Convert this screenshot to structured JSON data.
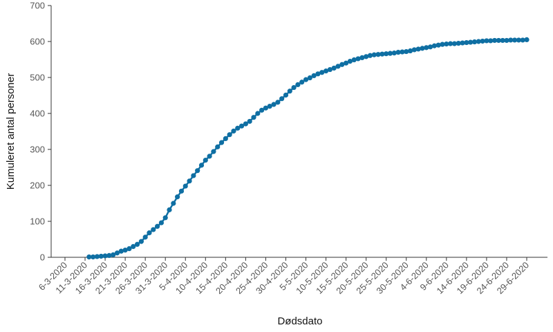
{
  "chart_data": {
    "type": "line",
    "xlabel": "Dødsdato",
    "ylabel": "Kumuleret antal personer",
    "ylim": [
      0,
      700
    ],
    "xlim": [
      "2020-03-06",
      "2020-06-29"
    ],
    "grid": false,
    "y_ticks": [
      0,
      100,
      200,
      300,
      400,
      500,
      600,
      700
    ],
    "x_ticks": [
      {
        "date": "2020-03-06",
        "label": "6-3-2020"
      },
      {
        "date": "2020-03-11",
        "label": "11-3-2020"
      },
      {
        "date": "2020-03-16",
        "label": "16-3-2020"
      },
      {
        "date": "2020-03-21",
        "label": "21-3-2020"
      },
      {
        "date": "2020-03-26",
        "label": "26-3-2020"
      },
      {
        "date": "2020-03-31",
        "label": "31-3-2020"
      },
      {
        "date": "2020-04-05",
        "label": "5-4-2020"
      },
      {
        "date": "2020-04-10",
        "label": "10-4-2020"
      },
      {
        "date": "2020-04-15",
        "label": "15-4-2020"
      },
      {
        "date": "2020-04-20",
        "label": "20-4-2020"
      },
      {
        "date": "2020-04-25",
        "label": "25-4-2020"
      },
      {
        "date": "2020-04-30",
        "label": "30-4-2020"
      },
      {
        "date": "2020-05-05",
        "label": "5-5-2020"
      },
      {
        "date": "2020-05-10",
        "label": "10-5-2020"
      },
      {
        "date": "2020-05-15",
        "label": "15-5-2020"
      },
      {
        "date": "2020-05-20",
        "label": "20-5-2020"
      },
      {
        "date": "2020-05-25",
        "label": "25-5-2020"
      },
      {
        "date": "2020-05-30",
        "label": "30-5-2020"
      },
      {
        "date": "2020-06-04",
        "label": "4-6-2020"
      },
      {
        "date": "2020-06-09",
        "label": "9-6-2020"
      },
      {
        "date": "2020-06-14",
        "label": "14-6-2020"
      },
      {
        "date": "2020-06-19",
        "label": "19-6-2020"
      },
      {
        "date": "2020-06-24",
        "label": "24-6-2020"
      },
      {
        "date": "2020-06-29",
        "label": "29-6-2020"
      }
    ],
    "series": [
      {
        "color": "#0f6fa3",
        "points": [
          [
            "2020-03-12",
            1
          ],
          [
            "2020-03-13",
            1
          ],
          [
            "2020-03-14",
            2
          ],
          [
            "2020-03-15",
            3
          ],
          [
            "2020-03-16",
            4
          ],
          [
            "2020-03-17",
            5
          ],
          [
            "2020-03-18",
            7
          ],
          [
            "2020-03-19",
            12
          ],
          [
            "2020-03-20",
            17
          ],
          [
            "2020-03-21",
            20
          ],
          [
            "2020-03-22",
            24
          ],
          [
            "2020-03-23",
            30
          ],
          [
            "2020-03-24",
            36
          ],
          [
            "2020-03-25",
            44
          ],
          [
            "2020-03-26",
            56
          ],
          [
            "2020-03-27",
            68
          ],
          [
            "2020-03-28",
            77
          ],
          [
            "2020-03-29",
            86
          ],
          [
            "2020-03-30",
            96
          ],
          [
            "2020-03-31",
            110
          ],
          [
            "2020-04-01",
            132
          ],
          [
            "2020-04-02",
            150
          ],
          [
            "2020-04-03",
            168
          ],
          [
            "2020-04-04",
            184
          ],
          [
            "2020-04-05",
            198
          ],
          [
            "2020-04-06",
            212
          ],
          [
            "2020-04-07",
            227
          ],
          [
            "2020-04-08",
            241
          ],
          [
            "2020-04-09",
            256
          ],
          [
            "2020-04-10",
            270
          ],
          [
            "2020-04-11",
            281
          ],
          [
            "2020-04-12",
            294
          ],
          [
            "2020-04-13",
            307
          ],
          [
            "2020-04-14",
            319
          ],
          [
            "2020-04-15",
            330
          ],
          [
            "2020-04-16",
            341
          ],
          [
            "2020-04-17",
            351
          ],
          [
            "2020-04-18",
            359
          ],
          [
            "2020-04-19",
            365
          ],
          [
            "2020-04-20",
            371
          ],
          [
            "2020-04-21",
            378
          ],
          [
            "2020-04-22",
            389
          ],
          [
            "2020-04-23",
            400
          ],
          [
            "2020-04-24",
            409
          ],
          [
            "2020-04-25",
            415
          ],
          [
            "2020-04-26",
            420
          ],
          [
            "2020-04-27",
            425
          ],
          [
            "2020-04-28",
            431
          ],
          [
            "2020-04-29",
            441
          ],
          [
            "2020-04-30",
            451
          ],
          [
            "2020-05-01",
            462
          ],
          [
            "2020-05-02",
            472
          ],
          [
            "2020-05-03",
            480
          ],
          [
            "2020-05-04",
            487
          ],
          [
            "2020-05-05",
            494
          ],
          [
            "2020-05-06",
            499
          ],
          [
            "2020-05-07",
            505
          ],
          [
            "2020-05-08",
            510
          ],
          [
            "2020-05-09",
            514
          ],
          [
            "2020-05-10",
            518
          ],
          [
            "2020-05-11",
            522
          ],
          [
            "2020-05-12",
            526
          ],
          [
            "2020-05-13",
            531
          ],
          [
            "2020-05-14",
            536
          ],
          [
            "2020-05-15",
            540
          ],
          [
            "2020-05-16",
            545
          ],
          [
            "2020-05-17",
            549
          ],
          [
            "2020-05-18",
            552
          ],
          [
            "2020-05-19",
            555
          ],
          [
            "2020-05-20",
            558
          ],
          [
            "2020-05-21",
            561
          ],
          [
            "2020-05-22",
            563
          ],
          [
            "2020-05-23",
            564
          ],
          [
            "2020-05-24",
            565
          ],
          [
            "2020-05-25",
            566
          ],
          [
            "2020-05-26",
            567
          ],
          [
            "2020-05-27",
            568
          ],
          [
            "2020-05-28",
            570
          ],
          [
            "2020-05-29",
            571
          ],
          [
            "2020-05-30",
            572
          ],
          [
            "2020-05-31",
            574
          ],
          [
            "2020-06-01",
            577
          ],
          [
            "2020-06-02",
            579
          ],
          [
            "2020-06-03",
            581
          ],
          [
            "2020-06-04",
            583
          ],
          [
            "2020-06-05",
            585
          ],
          [
            "2020-06-06",
            588
          ],
          [
            "2020-06-07",
            590
          ],
          [
            "2020-06-08",
            592
          ],
          [
            "2020-06-09",
            593
          ],
          [
            "2020-06-10",
            594
          ],
          [
            "2020-06-11",
            594
          ],
          [
            "2020-06-12",
            595
          ],
          [
            "2020-06-13",
            596
          ],
          [
            "2020-06-14",
            597
          ],
          [
            "2020-06-15",
            598
          ],
          [
            "2020-06-16",
            599
          ],
          [
            "2020-06-17",
            600
          ],
          [
            "2020-06-18",
            601
          ],
          [
            "2020-06-19",
            602
          ],
          [
            "2020-06-20",
            602
          ],
          [
            "2020-06-21",
            603
          ],
          [
            "2020-06-22",
            603
          ],
          [
            "2020-06-23",
            603
          ],
          [
            "2020-06-24",
            603
          ],
          [
            "2020-06-25",
            604
          ],
          [
            "2020-06-26",
            604
          ],
          [
            "2020-06-27",
            604
          ],
          [
            "2020-06-28",
            604
          ],
          [
            "2020-06-29",
            605
          ]
        ]
      }
    ]
  }
}
